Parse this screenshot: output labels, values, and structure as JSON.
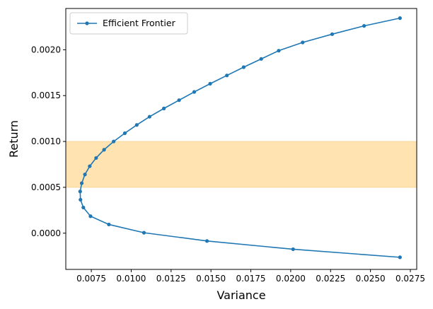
{
  "chart_data": {
    "type": "line",
    "title": "",
    "xlabel": "Variance",
    "ylabel": "Return",
    "xlim": [
      0.0059,
      0.0279
    ],
    "ylim": [
      -0.000395,
      0.00245
    ],
    "xticks": [
      0.0075,
      0.01,
      0.0125,
      0.015,
      0.0175,
      0.02,
      0.0225,
      0.025,
      0.0275
    ],
    "xtick_labels": [
      "0.0075",
      "0.0100",
      "0.0125",
      "0.0150",
      "0.0175",
      "0.0200",
      "0.0225",
      "0.0250",
      "0.0275"
    ],
    "yticks": [
      0.0,
      0.0005,
      0.001,
      0.0015,
      0.002
    ],
    "ytick_labels": [
      "0.0000",
      "0.0005",
      "0.0010",
      "0.0015",
      "0.0020"
    ],
    "grid": false,
    "legend_position": "top-left",
    "band": {
      "y0": 0.0005,
      "y1": 0.001,
      "color": "#ffe3b0"
    },
    "series": [
      {
        "name": "Efficient Frontier",
        "color": "#1f77b4",
        "marker": "circle",
        "points": [
          [
            0.02685,
            -0.000263
          ],
          [
            0.02015,
            -0.000175
          ],
          [
            0.01475,
            -8.5e-05
          ],
          [
            0.0108,
            5e-06
          ],
          [
            0.0086,
            9.5e-05
          ],
          [
            0.00745,
            0.000185
          ],
          [
            0.007,
            0.00028
          ],
          [
            0.00682,
            0.000365
          ],
          [
            0.0068,
            0.000455
          ],
          [
            0.0069,
            0.000545
          ],
          [
            0.0071,
            0.00064
          ],
          [
            0.0074,
            0.00073
          ],
          [
            0.0078,
            0.00082
          ],
          [
            0.0083,
            0.00091
          ],
          [
            0.0089,
            0.001
          ],
          [
            0.0096,
            0.00109
          ],
          [
            0.01035,
            0.00118
          ],
          [
            0.01115,
            0.00127
          ],
          [
            0.01205,
            0.00136
          ],
          [
            0.013,
            0.00145
          ],
          [
            0.01395,
            0.00154
          ],
          [
            0.01495,
            0.00163
          ],
          [
            0.016,
            0.00172
          ],
          [
            0.01705,
            0.00181
          ],
          [
            0.01815,
            0.0019
          ],
          [
            0.01925,
            0.00199
          ],
          [
            0.02075,
            0.00208
          ],
          [
            0.0226,
            0.00217
          ],
          [
            0.0246,
            0.00226
          ],
          [
            0.02685,
            0.002345
          ]
        ]
      }
    ]
  }
}
